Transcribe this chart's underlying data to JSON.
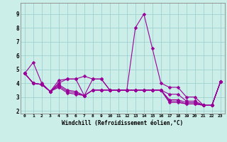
{
  "xlabel": "Windchill (Refroidissement éolien,°C)",
  "background_color": "#cceee8",
  "grid_color": "#99cccc",
  "line_color": "#990099",
  "xlim": [
    -0.5,
    23.5
  ],
  "ylim": [
    1.8,
    9.8
  ],
  "xticks": [
    0,
    1,
    2,
    3,
    4,
    5,
    6,
    7,
    8,
    9,
    10,
    11,
    12,
    13,
    14,
    15,
    16,
    17,
    18,
    19,
    20,
    21,
    22,
    23
  ],
  "yticks": [
    2,
    3,
    4,
    5,
    6,
    7,
    8,
    9
  ],
  "series": [
    [
      4.7,
      5.5,
      4.0,
      3.4,
      4.2,
      4.3,
      4.3,
      4.5,
      4.3,
      4.3,
      3.5,
      3.5,
      3.5,
      8.0,
      9.0,
      6.5,
      4.0,
      3.7,
      3.7,
      3.0,
      3.0,
      2.4,
      2.4,
      4.1
    ],
    [
      4.7,
      4.0,
      3.9,
      3.4,
      4.0,
      4.3,
      4.3,
      3.1,
      4.3,
      4.3,
      3.5,
      3.5,
      3.5,
      3.5,
      3.5,
      3.5,
      3.5,
      3.2,
      3.2,
      2.7,
      2.7,
      2.4,
      2.4,
      4.1
    ],
    [
      4.7,
      4.0,
      3.9,
      3.4,
      3.9,
      3.5,
      3.4,
      3.1,
      3.5,
      3.5,
      3.5,
      3.5,
      3.5,
      3.5,
      3.5,
      3.5,
      3.5,
      2.8,
      2.8,
      2.6,
      2.6,
      2.4,
      2.4,
      4.1
    ],
    [
      4.7,
      4.0,
      3.9,
      3.4,
      3.8,
      3.4,
      3.3,
      3.1,
      3.5,
      3.5,
      3.5,
      3.5,
      3.5,
      3.5,
      3.5,
      3.5,
      3.5,
      2.7,
      2.7,
      2.5,
      2.5,
      2.4,
      2.4,
      4.1
    ],
    [
      4.7,
      4.0,
      3.9,
      3.4,
      3.7,
      3.3,
      3.2,
      3.1,
      3.5,
      3.5,
      3.5,
      3.5,
      3.5,
      3.5,
      3.5,
      3.5,
      3.5,
      2.6,
      2.6,
      2.5,
      2.5,
      2.4,
      2.4,
      4.1
    ]
  ],
  "markersize": 2.5
}
